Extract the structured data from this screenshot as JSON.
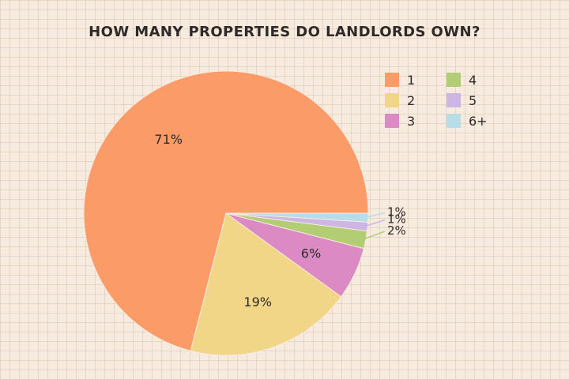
{
  "chart_data": {
    "type": "pie",
    "title": "HOW MANY PROPERTIES DO LANDLORDS OWN?",
    "categories": [
      "1",
      "2",
      "3",
      "4",
      "5",
      "6+"
    ],
    "values": [
      71,
      19,
      6,
      2,
      1,
      1
    ],
    "value_labels": [
      "71%",
      "19%",
      "6%",
      "2%",
      "1%",
      "1%"
    ],
    "colors": [
      "#fb9b68",
      "#f0d686",
      "#dc8ac4",
      "#b2cd73",
      "#cdb6e4",
      "#b7dde9"
    ],
    "start_angle_deg": 0,
    "direction": "counterclockwise",
    "legend": {
      "position": "top-right",
      "items": [
        {
          "label": "1",
          "color": "#fb9b68"
        },
        {
          "label": "2",
          "color": "#f0d686"
        },
        {
          "label": "3",
          "color": "#dc8ac4"
        },
        {
          "label": "4",
          "color": "#b2cd73"
        },
        {
          "label": "5",
          "color": "#cdb6e4"
        },
        {
          "label": "6+",
          "color": "#b7dde9"
        }
      ]
    }
  }
}
